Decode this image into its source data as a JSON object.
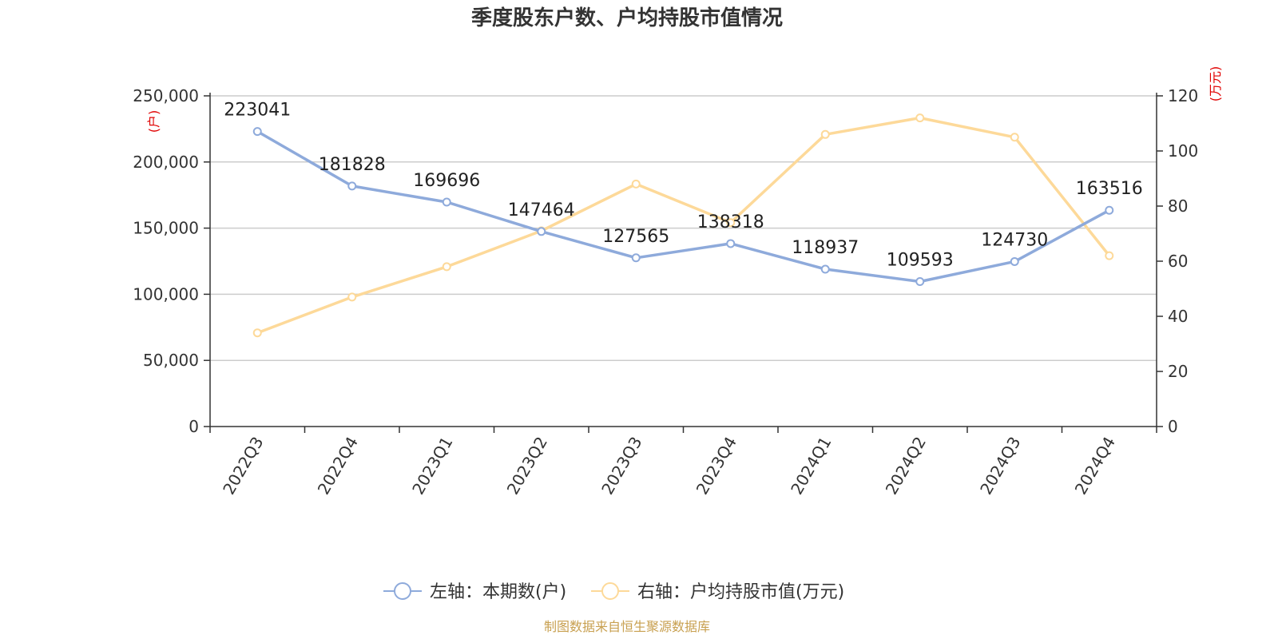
{
  "chart_data": {
    "type": "line",
    "title": "季度股东户数、户均持股市值情况",
    "categories": [
      "2022Q3",
      "2022Q4",
      "2023Q1",
      "2023Q2",
      "2023Q3",
      "2023Q4",
      "2024Q1",
      "2024Q2",
      "2024Q3",
      "2024Q4"
    ],
    "left_axis": {
      "unit": "(户)",
      "ylim": [
        0,
        250000
      ],
      "ticks": [
        "0",
        "50,000",
        "100,000",
        "150,000",
        "200,000",
        "250,000"
      ],
      "tick_values": [
        0,
        50000,
        100000,
        150000,
        200000,
        250000
      ]
    },
    "right_axis": {
      "unit": "(万元)",
      "ylim": [
        0,
        120
      ],
      "ticks": [
        "0",
        "20",
        "40",
        "60",
        "80",
        "100",
        "120"
      ],
      "tick_values": [
        0,
        20,
        40,
        60,
        80,
        100,
        120
      ]
    },
    "series": [
      {
        "name": "左轴：本期数(户)",
        "axis": "left",
        "color": "#8eaadb",
        "values": [
          223041,
          181828,
          169696,
          147464,
          127565,
          138318,
          118937,
          109593,
          124730,
          163516
        ],
        "data_labels": [
          "223041",
          "181828",
          "169696",
          "147464",
          "127565",
          "138318",
          "118937",
          "109593",
          "124730",
          "163516"
        ]
      },
      {
        "name": "右轴：户均持股市值(万元)",
        "axis": "right",
        "color": "#fdd999",
        "values": [
          34,
          47,
          58,
          71,
          88,
          74,
          106,
          112,
          105,
          62
        ]
      }
    ],
    "grid": true,
    "legend_position": "bottom-center"
  },
  "source": "制图数据来自恒生聚源数据库"
}
